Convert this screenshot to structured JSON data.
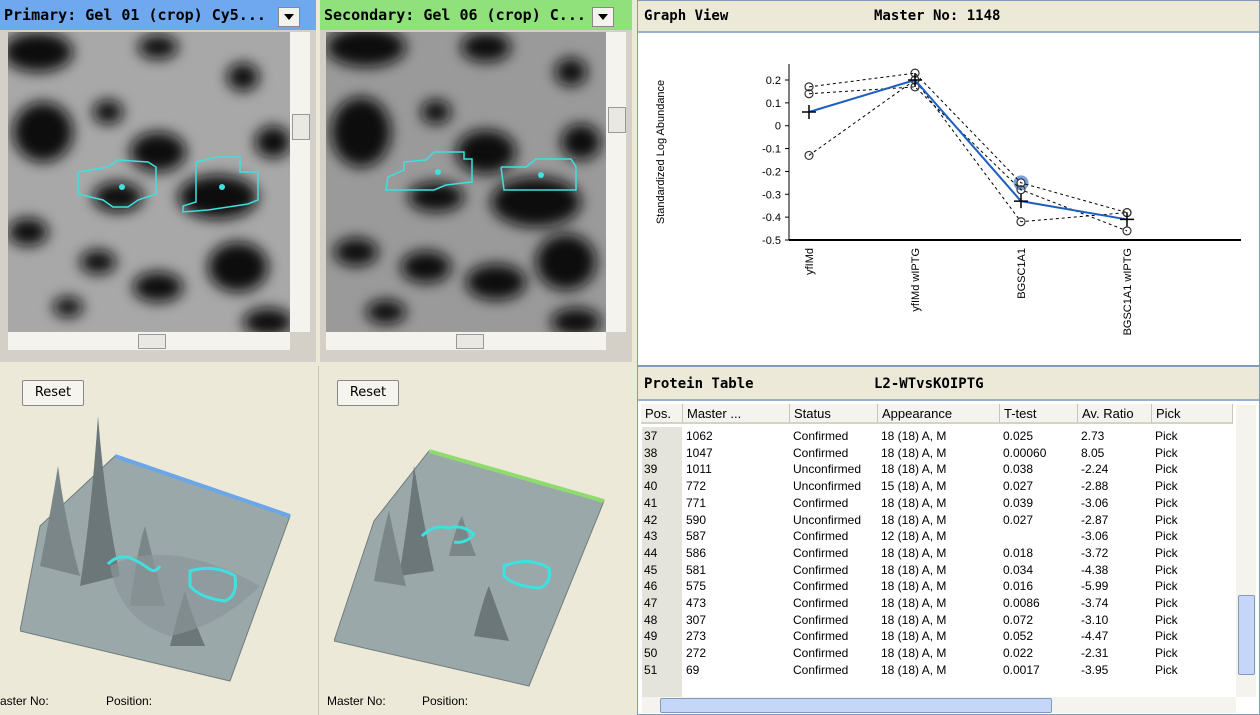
{
  "panels": {
    "primary": {
      "title": "Primary: Gel 01 (crop) Cy5..."
    },
    "secondary": {
      "title": "Secondary: Gel 06 (crop) C..."
    }
  },
  "graph_view": {
    "title": "Graph View",
    "master": "Master No: 1148"
  },
  "chart_data": {
    "type": "line",
    "y_label": "Standardized Log Abundance",
    "categories": [
      "yfIMd",
      "yfIMd wIPTG",
      "BGSC1A1",
      "BGSC1A1 wIPTG"
    ],
    "ylim": [
      -0.5,
      0.27
    ],
    "yticks": [
      0.2,
      0.1,
      0,
      -0.1,
      -0.2,
      -0.3,
      -0.4,
      -0.5
    ],
    "series": [
      {
        "color": "#000000",
        "dashed": true,
        "marker": "circle",
        "values": [
          0.17,
          0.23,
          -0.25,
          -0.38
        ]
      },
      {
        "color": "#000000",
        "dashed": true,
        "marker": "circle",
        "values": [
          0.14,
          0.17,
          -0.28,
          -0.46
        ]
      },
      {
        "color": "#000000",
        "dashed": true,
        "marker": "circle",
        "values": [
          -0.13,
          0.2,
          -0.42,
          -0.38
        ]
      },
      {
        "color": "#1f5fbf",
        "dashed": false,
        "marker": "plus",
        "values": [
          0.06,
          0.2,
          -0.33,
          -0.41
        ]
      }
    ]
  },
  "views3d": [
    {
      "reset": "Reset",
      "master": "aster No:",
      "position": "Position:"
    },
    {
      "reset": "Reset",
      "master": "Master No:",
      "position": "Position:"
    }
  ],
  "table": {
    "title": "Protein Table",
    "experiment": "L2-WTvsKOIPTG",
    "columns": [
      "Pos.",
      "Master ...",
      "Status",
      "Appearance",
      "T-test",
      "Av. Ratio",
      "Pick"
    ],
    "rows": [
      [
        "37",
        "1062",
        "Confirmed",
        "18 (18) A, M",
        "0.025",
        "2.73",
        "Pick"
      ],
      [
        "38",
        "1047",
        "Confirmed",
        "18 (18) A, M",
        "0.00060",
        "8.05",
        "Pick"
      ],
      [
        "39",
        "1011",
        "Unconfirmed",
        "18 (18) A, M",
        "0.038",
        "-2.24",
        "Pick"
      ],
      [
        "40",
        "772",
        "Unconfirmed",
        "15 (18) A, M",
        "0.027",
        "-2.88",
        "Pick"
      ],
      [
        "41",
        "771",
        "Confirmed",
        "18 (18) A, M",
        "0.039",
        "-3.06",
        "Pick"
      ],
      [
        "42",
        "590",
        "Unconfirmed",
        "18 (18) A, M",
        "0.027",
        "-2.87",
        "Pick"
      ],
      [
        "43",
        "587",
        "Confirmed",
        "12 (18) A, M",
        null,
        "-3.06",
        "Pick"
      ],
      [
        "44",
        "586",
        "Confirmed",
        "18 (18) A, M",
        "0.018",
        "-3.72",
        "Pick"
      ],
      [
        "45",
        "581",
        "Confirmed",
        "18 (18) A, M",
        "0.034",
        "-4.38",
        "Pick"
      ],
      [
        "46",
        "575",
        "Confirmed",
        "18 (18) A, M",
        "0.016",
        "-5.99",
        "Pick"
      ],
      [
        "47",
        "473",
        "Confirmed",
        "18 (18) A, M",
        "0.0086",
        "-3.74",
        "Pick"
      ],
      [
        "48",
        "307",
        "Confirmed",
        "18 (18) A, M",
        "0.072",
        "-3.10",
        "Pick"
      ],
      [
        "49",
        "273",
        "Confirmed",
        "18 (18) A, M",
        "0.052",
        "-4.47",
        "Pick"
      ],
      [
        "50",
        "272",
        "Confirmed",
        "18 (18) A, M",
        "0.022",
        "-2.31",
        "Pick"
      ],
      [
        "51",
        "69",
        "Confirmed",
        "18 (18) A, M",
        "0.0017",
        "-3.95",
        "Pick"
      ]
    ]
  }
}
